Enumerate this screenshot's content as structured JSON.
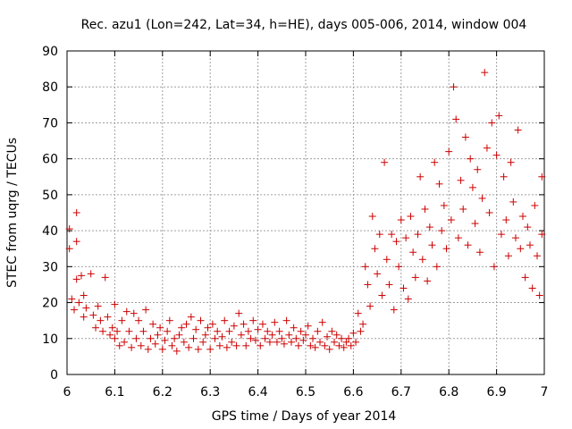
{
  "chart_data": {
    "type": "scatter",
    "title": "Rec. azu1 (Lon=242, Lat=34, h=HE), days 005-006, 2014, window 004",
    "xlabel": "GPS time / Days of year 2014",
    "ylabel": "STEC from uqrg / TECUs",
    "xlim": [
      6,
      7
    ],
    "ylim": [
      0,
      90
    ],
    "x_ticks": [
      "6",
      "6.1",
      "6.2",
      "6.3",
      "6.4",
      "6.5",
      "6.6",
      "6.7",
      "6.8",
      "6.9",
      "7"
    ],
    "y_ticks": [
      "0",
      "10",
      "20",
      "30",
      "40",
      "50",
      "60",
      "70",
      "80",
      "90"
    ],
    "grid": true,
    "marker": "plus",
    "colors": {
      "points": "#cc0000",
      "grid": "#a0a0a0",
      "axes": "#000000"
    },
    "series": [
      {
        "points": [
          [
            6.005,
            40.5
          ],
          [
            6.005,
            35
          ],
          [
            6.01,
            21
          ],
          [
            6.015,
            18
          ],
          [
            6.02,
            45
          ],
          [
            6.02,
            37
          ],
          [
            6.02,
            26.5
          ],
          [
            6.025,
            20
          ],
          [
            6.03,
            27.5
          ],
          [
            6.035,
            16
          ],
          [
            6.035,
            22
          ],
          [
            6.04,
            18.5
          ],
          [
            6.05,
            28
          ],
          [
            6.055,
            16.5
          ],
          [
            6.06,
            13
          ],
          [
            6.065,
            19
          ],
          [
            6.07,
            15
          ],
          [
            6.075,
            12
          ],
          [
            6.08,
            27
          ],
          [
            6.085,
            16
          ],
          [
            6.09,
            11
          ],
          [
            6.095,
            13
          ],
          [
            6.1,
            19.5
          ],
          [
            6.1,
            10
          ],
          [
            6.105,
            12
          ],
          [
            6.11,
            8
          ],
          [
            6.115,
            15
          ],
          [
            6.12,
            9
          ],
          [
            6.125,
            17.5
          ],
          [
            6.13,
            12
          ],
          [
            6.135,
            7.5
          ],
          [
            6.14,
            17
          ],
          [
            6.145,
            10
          ],
          [
            6.15,
            15
          ],
          [
            6.155,
            8
          ],
          [
            6.16,
            12
          ],
          [
            6.165,
            18
          ],
          [
            6.17,
            7
          ],
          [
            6.175,
            10
          ],
          [
            6.18,
            14
          ],
          [
            6.185,
            8.5
          ],
          [
            6.19,
            11
          ],
          [
            6.195,
            13
          ],
          [
            6.2,
            7
          ],
          [
            6.205,
            9.5
          ],
          [
            6.21,
            12
          ],
          [
            6.215,
            15
          ],
          [
            6.22,
            8
          ],
          [
            6.225,
            10
          ],
          [
            6.23,
            6.5
          ],
          [
            6.235,
            11
          ],
          [
            6.24,
            13
          ],
          [
            6.245,
            9
          ],
          [
            6.25,
            14
          ],
          [
            6.255,
            7.5
          ],
          [
            6.26,
            16
          ],
          [
            6.265,
            10
          ],
          [
            6.27,
            12.5
          ],
          [
            6.275,
            7
          ],
          [
            6.28,
            15
          ],
          [
            6.285,
            9
          ],
          [
            6.29,
            11
          ],
          [
            6.295,
            13
          ],
          [
            6.3,
            7
          ],
          [
            6.305,
            14
          ],
          [
            6.31,
            10
          ],
          [
            6.315,
            12
          ],
          [
            6.32,
            8
          ],
          [
            6.325,
            10.5
          ],
          [
            6.33,
            15
          ],
          [
            6.335,
            7.5
          ],
          [
            6.34,
            12
          ],
          [
            6.345,
            9
          ],
          [
            6.35,
            13.5
          ],
          [
            6.355,
            8
          ],
          [
            6.36,
            17
          ],
          [
            6.365,
            11
          ],
          [
            6.37,
            14
          ],
          [
            6.375,
            8
          ],
          [
            6.38,
            12
          ],
          [
            6.385,
            10
          ],
          [
            6.39,
            15
          ],
          [
            6.395,
            9.5
          ],
          [
            6.4,
            12.5
          ],
          [
            6.405,
            8
          ],
          [
            6.41,
            14
          ],
          [
            6.415,
            10
          ],
          [
            6.42,
            12
          ],
          [
            6.425,
            9
          ],
          [
            6.43,
            11
          ],
          [
            6.435,
            14.5
          ],
          [
            6.44,
            9
          ],
          [
            6.445,
            12
          ],
          [
            6.45,
            10
          ],
          [
            6.455,
            8.5
          ],
          [
            6.46,
            15
          ],
          [
            6.465,
            11
          ],
          [
            6.47,
            9
          ],
          [
            6.475,
            13
          ],
          [
            6.48,
            10
          ],
          [
            6.485,
            8
          ],
          [
            6.49,
            12
          ],
          [
            6.495,
            9.5
          ],
          [
            6.5,
            11
          ],
          [
            6.505,
            13.5
          ],
          [
            6.51,
            8
          ],
          [
            6.515,
            10
          ],
          [
            6.52,
            7.5
          ],
          [
            6.525,
            12
          ],
          [
            6.53,
            9
          ],
          [
            6.535,
            14.5
          ],
          [
            6.54,
            8
          ],
          [
            6.545,
            10.5
          ],
          [
            6.55,
            7
          ],
          [
            6.555,
            12
          ],
          [
            6.56,
            9
          ],
          [
            6.565,
            11
          ],
          [
            6.57,
            8
          ],
          [
            6.575,
            10
          ],
          [
            6.58,
            7.5
          ],
          [
            6.585,
            9
          ],
          [
            6.59,
            10
          ],
          [
            6.595,
            8
          ],
          [
            6.6,
            11.5
          ],
          [
            6.605,
            9
          ],
          [
            6.61,
            17
          ],
          [
            6.615,
            12
          ],
          [
            6.62,
            14
          ],
          [
            6.625,
            30
          ],
          [
            6.63,
            25
          ],
          [
            6.635,
            19
          ],
          [
            6.64,
            44
          ],
          [
            6.645,
            35
          ],
          [
            6.65,
            28
          ],
          [
            6.655,
            39
          ],
          [
            6.66,
            22
          ],
          [
            6.665,
            59
          ],
          [
            6.67,
            32
          ],
          [
            6.675,
            25
          ],
          [
            6.68,
            39
          ],
          [
            6.685,
            18
          ],
          [
            6.69,
            37
          ],
          [
            6.695,
            30
          ],
          [
            6.7,
            43
          ],
          [
            6.705,
            24
          ],
          [
            6.71,
            38
          ],
          [
            6.715,
            21
          ],
          [
            6.72,
            44
          ],
          [
            6.725,
            34
          ],
          [
            6.73,
            27
          ],
          [
            6.735,
            39
          ],
          [
            6.74,
            55
          ],
          [
            6.745,
            32
          ],
          [
            6.75,
            46
          ],
          [
            6.755,
            26
          ],
          [
            6.76,
            41
          ],
          [
            6.765,
            36
          ],
          [
            6.77,
            59
          ],
          [
            6.775,
            30
          ],
          [
            6.78,
            53
          ],
          [
            6.785,
            40
          ],
          [
            6.79,
            47
          ],
          [
            6.795,
            35
          ],
          [
            6.8,
            62
          ],
          [
            6.805,
            43
          ],
          [
            6.81,
            80
          ],
          [
            6.815,
            71
          ],
          [
            6.82,
            38
          ],
          [
            6.825,
            54
          ],
          [
            6.83,
            46
          ],
          [
            6.835,
            66
          ],
          [
            6.84,
            36
          ],
          [
            6.845,
            60
          ],
          [
            6.85,
            52
          ],
          [
            6.855,
            42
          ],
          [
            6.86,
            57
          ],
          [
            6.865,
            34
          ],
          [
            6.87,
            49
          ],
          [
            6.875,
            84
          ],
          [
            6.88,
            63
          ],
          [
            6.885,
            45
          ],
          [
            6.89,
            70
          ],
          [
            6.895,
            30
          ],
          [
            6.9,
            61
          ],
          [
            6.905,
            72
          ],
          [
            6.91,
            39
          ],
          [
            6.915,
            55
          ],
          [
            6.92,
            43
          ],
          [
            6.925,
            33
          ],
          [
            6.93,
            59
          ],
          [
            6.935,
            48
          ],
          [
            6.94,
            38
          ],
          [
            6.945,
            68
          ],
          [
            6.95,
            35
          ],
          [
            6.955,
            44
          ],
          [
            6.96,
            27
          ],
          [
            6.965,
            41
          ],
          [
            6.97,
            36
          ],
          [
            6.975,
            24
          ],
          [
            6.98,
            47
          ],
          [
            6.985,
            33
          ],
          [
            6.99,
            22
          ],
          [
            6.995,
            55
          ],
          [
            6.995,
            39
          ]
        ]
      }
    ]
  }
}
